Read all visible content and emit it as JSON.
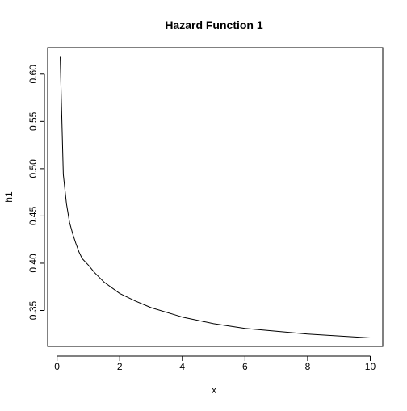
{
  "chart_data": {
    "type": "line",
    "title": "Hazard Function 1",
    "xlabel": "x",
    "ylabel": "h1",
    "xlim": [
      -0.3,
      10.4
    ],
    "ylim": [
      0.312,
      0.628
    ],
    "x_ticks": [
      0,
      2,
      4,
      6,
      8,
      10
    ],
    "x_tick_labels": [
      "0",
      "2",
      "4",
      "6",
      "8",
      "10"
    ],
    "y_ticks": [
      0.35,
      0.4,
      0.45,
      0.5,
      0.55,
      0.6
    ],
    "y_tick_labels": [
      "0.35",
      "0.40",
      "0.45",
      "0.50",
      "0.55",
      "0.60"
    ],
    "grid": false,
    "series": [
      {
        "color": "#000000",
        "x": [
          0.1,
          0.2,
          0.3,
          0.4,
          0.5,
          0.6,
          0.7,
          0.8,
          1.0,
          1.2,
          1.5,
          2.0,
          2.5,
          3.0,
          4.0,
          5.0,
          6.0,
          7.0,
          8.0,
          9.0,
          10.0
        ],
        "y": [
          0.619,
          0.494,
          0.463,
          0.443,
          0.431,
          0.421,
          0.412,
          0.405,
          0.398,
          0.39,
          0.38,
          0.368,
          0.36,
          0.353,
          0.343,
          0.336,
          0.331,
          0.328,
          0.325,
          0.323,
          0.321
        ]
      }
    ]
  }
}
